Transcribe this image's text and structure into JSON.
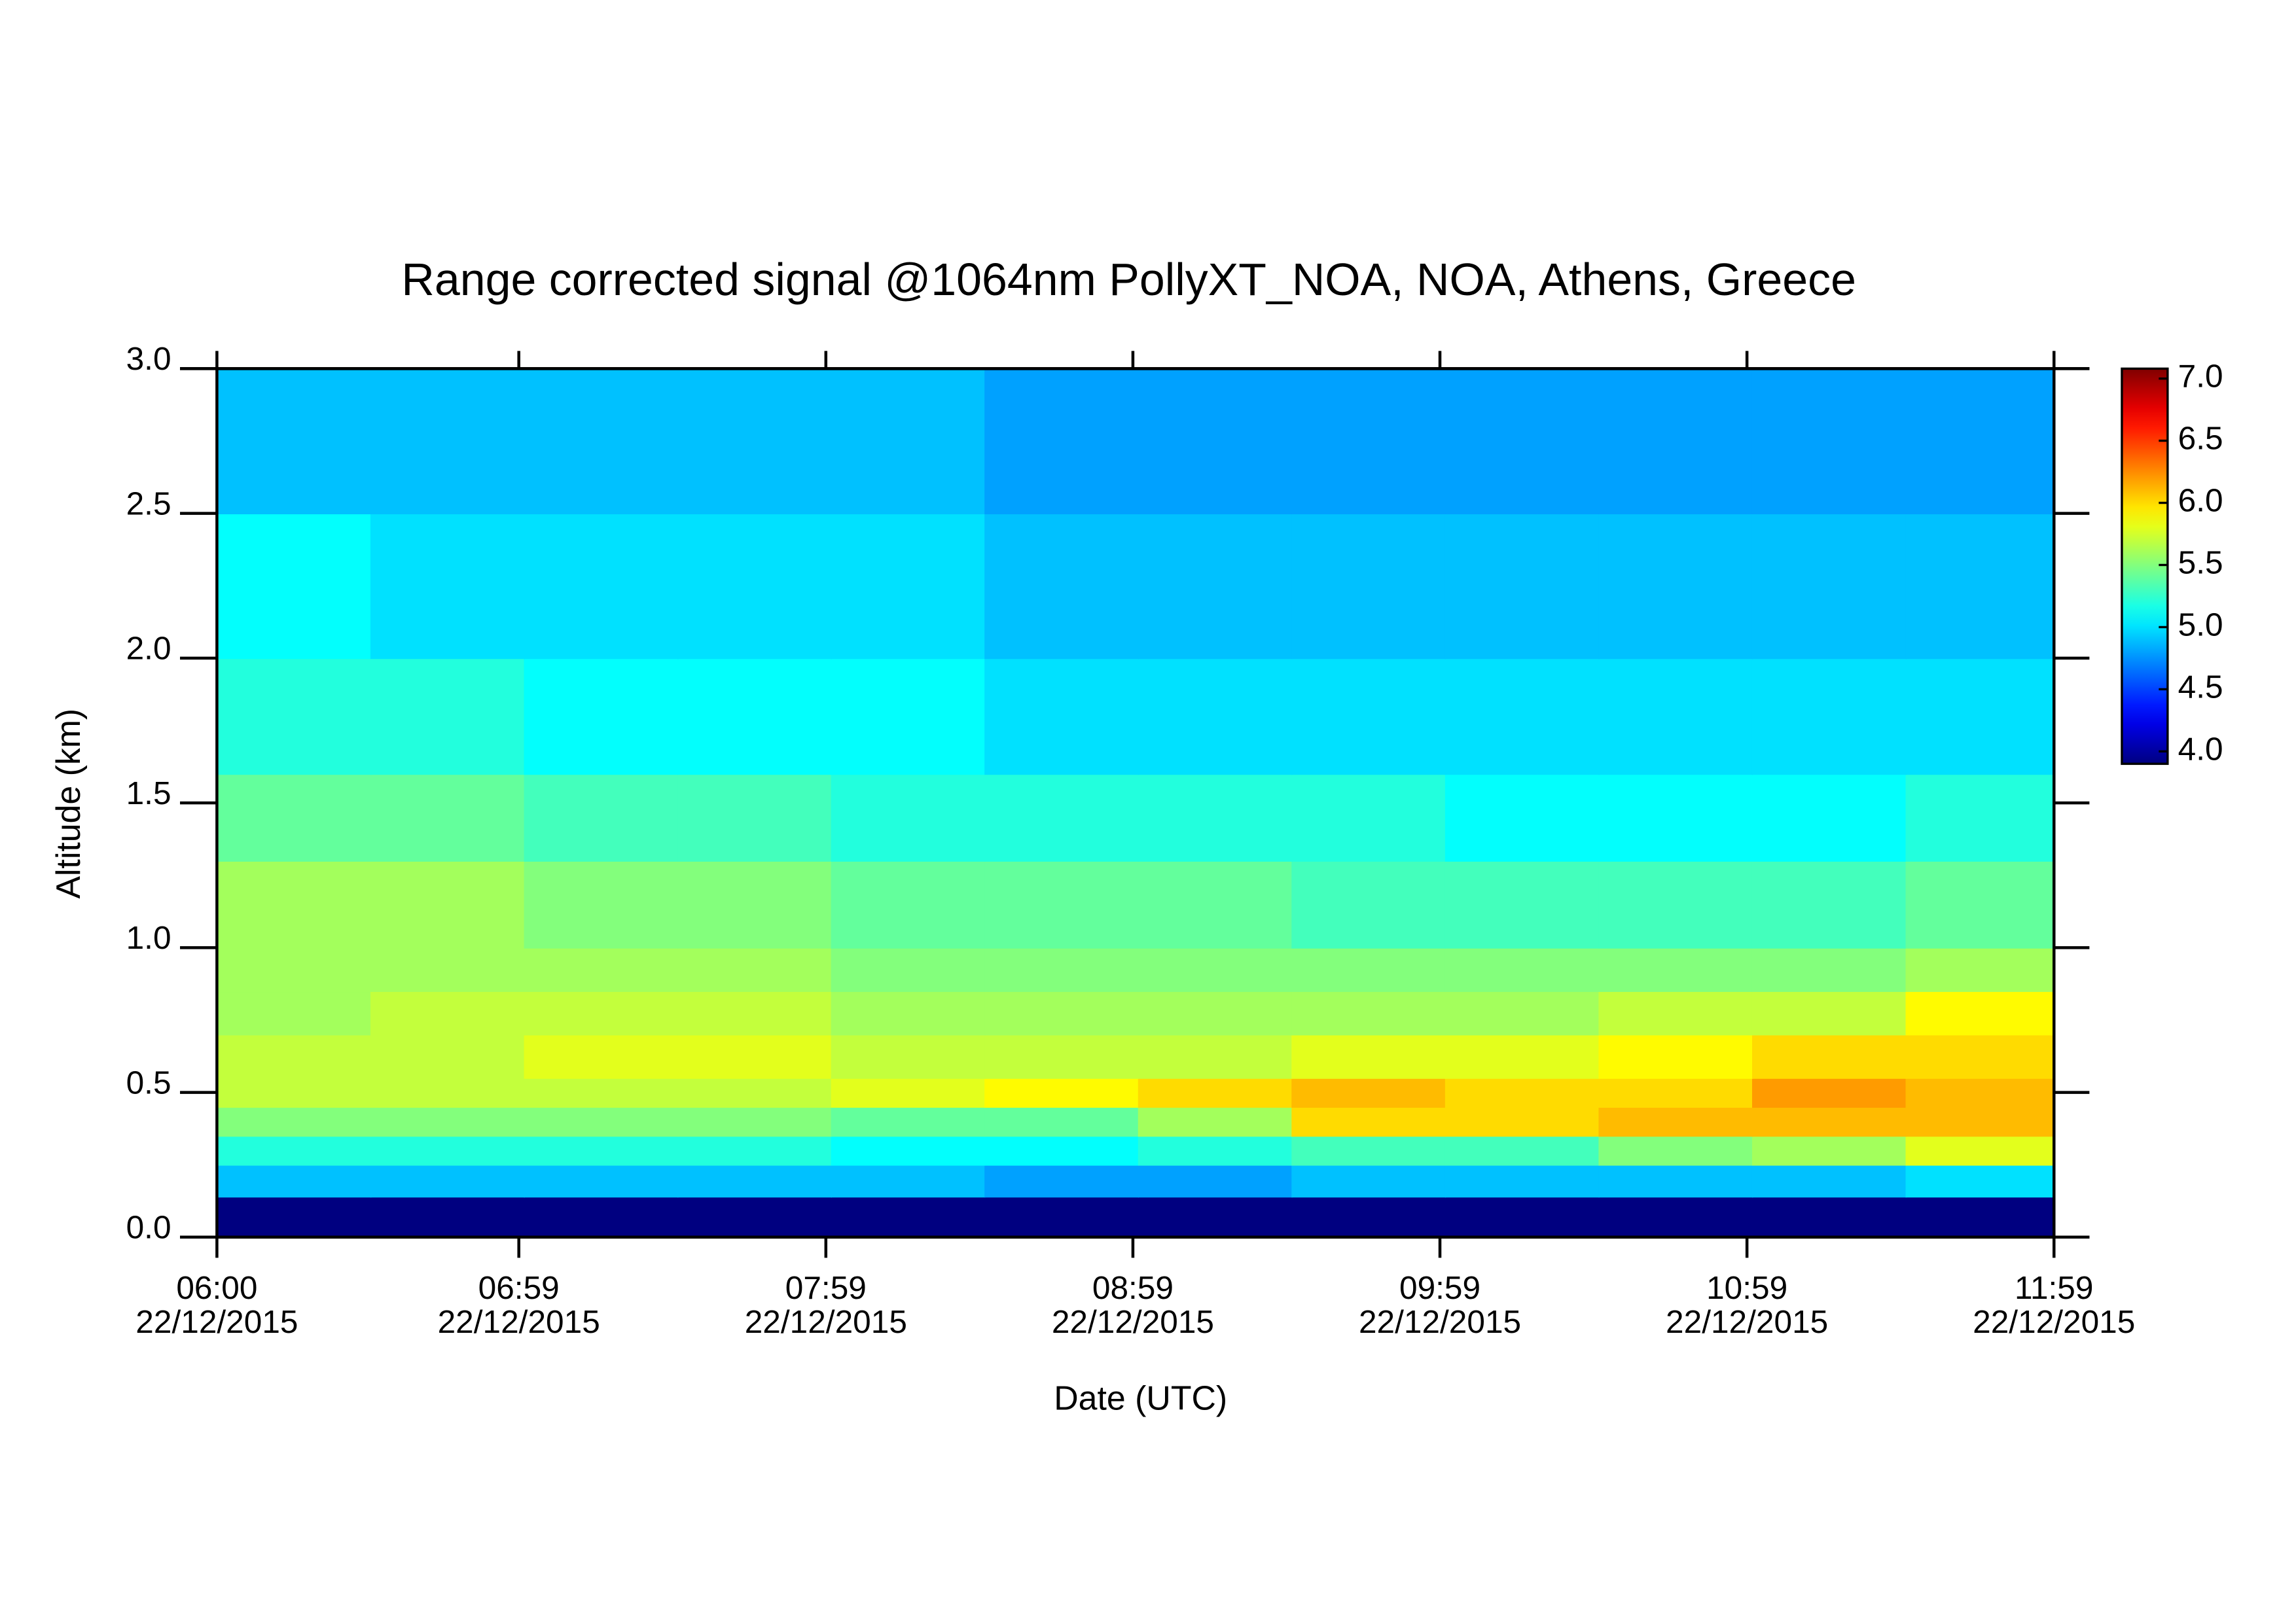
{
  "chart_data": {
    "type": "heatmap",
    "title": "Range corrected signal @1064nm  PollyXT_NOA, NOA, Athens, Greece",
    "x_label": "Date (UTC)",
    "y_label": "Altitude (km)",
    "xlim": [
      "06:00",
      "11:59"
    ],
    "xticks": [
      {
        "time": "06:00",
        "date": "22/12/2015"
      },
      {
        "time": "06:59",
        "date": "22/12/2015"
      },
      {
        "time": "07:59",
        "date": "22/12/2015"
      },
      {
        "time": "08:59",
        "date": "22/12/2015"
      },
      {
        "time": "09:59",
        "date": "22/12/2015"
      },
      {
        "time": "10:59",
        "date": "22/12/2015"
      },
      {
        "time": "11:59",
        "date": "22/12/2015"
      }
    ],
    "ylim": [
      0,
      3
    ],
    "yticks": [
      {
        "value": 0,
        "label": "0.0"
      },
      {
        "value": 0.5,
        "label": "0.5"
      },
      {
        "value": 1,
        "label": "1.0"
      },
      {
        "value": 1.5,
        "label": "1.5"
      },
      {
        "value": 2,
        "label": "2.0"
      },
      {
        "value": 2.5,
        "label": "2.5"
      },
      {
        "value": 3,
        "label": "3.0"
      }
    ],
    "xbins": [
      "06:00",
      "06:30",
      "07:00",
      "07:30",
      "08:00",
      "08:30",
      "09:00",
      "09:30",
      "10:00",
      "10:30",
      "11:00",
      "11:30",
      "11:59"
    ],
    "ybins": [
      0,
      0.14,
      0.25,
      0.35,
      0.45,
      0.55,
      0.7,
      0.85,
      1.0,
      1.3,
      1.6,
      2.0,
      2.5,
      3.0
    ],
    "z": [
      [
        3.9,
        3.9,
        3.9,
        3.9,
        3.9,
        3.9,
        3.9,
        3.9,
        3.9,
        3.9,
        3.9,
        3.9
      ],
      [
        4.9,
        4.9,
        4.9,
        4.9,
        4.9,
        4.8,
        4.8,
        4.9,
        4.9,
        4.9,
        4.9,
        5.0
      ],
      [
        5.2,
        5.2,
        5.2,
        5.2,
        5.1,
        5.1,
        5.2,
        5.3,
        5.3,
        5.5,
        5.6,
        5.8
      ],
      [
        5.5,
        5.5,
        5.5,
        5.5,
        5.4,
        5.4,
        5.6,
        6.0,
        6.0,
        6.1,
        6.1,
        6.1
      ],
      [
        5.7,
        5.7,
        5.7,
        5.7,
        5.8,
        5.9,
        6.0,
        6.1,
        6.0,
        6.0,
        6.2,
        6.1
      ],
      [
        5.7,
        5.7,
        5.8,
        5.8,
        5.7,
        5.7,
        5.7,
        5.8,
        5.8,
        5.9,
        6.0,
        6.0
      ],
      [
        5.6,
        5.7,
        5.7,
        5.7,
        5.6,
        5.6,
        5.6,
        5.6,
        5.6,
        5.7,
        5.7,
        5.9
      ],
      [
        5.6,
        5.6,
        5.6,
        5.6,
        5.5,
        5.5,
        5.5,
        5.5,
        5.5,
        5.5,
        5.5,
        5.6
      ],
      [
        5.6,
        5.6,
        5.5,
        5.5,
        5.4,
        5.4,
        5.4,
        5.3,
        5.3,
        5.3,
        5.3,
        5.4
      ],
      [
        5.4,
        5.4,
        5.3,
        5.3,
        5.2,
        5.2,
        5.2,
        5.2,
        5.1,
        5.1,
        5.1,
        5.2
      ],
      [
        5.2,
        5.2,
        5.1,
        5.1,
        5.1,
        5.0,
        5.0,
        5.0,
        5.0,
        5.0,
        5.0,
        5.0
      ],
      [
        5.1,
        5.0,
        5.0,
        5.0,
        5.0,
        4.9,
        4.9,
        4.9,
        4.9,
        4.9,
        4.9,
        4.9
      ],
      [
        4.9,
        4.9,
        4.9,
        4.9,
        4.9,
        4.8,
        4.8,
        4.8,
        4.8,
        4.8,
        4.8,
        4.8
      ]
    ],
    "colormap": "jet",
    "zlim": [
      3.9,
      7.08
    ],
    "zticks": [
      {
        "value": 4,
        "label": "4.0"
      },
      {
        "value": 4.5,
        "label": "4.5"
      },
      {
        "value": 5,
        "label": "5.0"
      },
      {
        "value": 5.5,
        "label": "5.5"
      },
      {
        "value": 6,
        "label": "6.0"
      },
      {
        "value": 6.5,
        "label": "6.5"
      },
      {
        "value": 7,
        "label": "7.0"
      }
    ]
  }
}
